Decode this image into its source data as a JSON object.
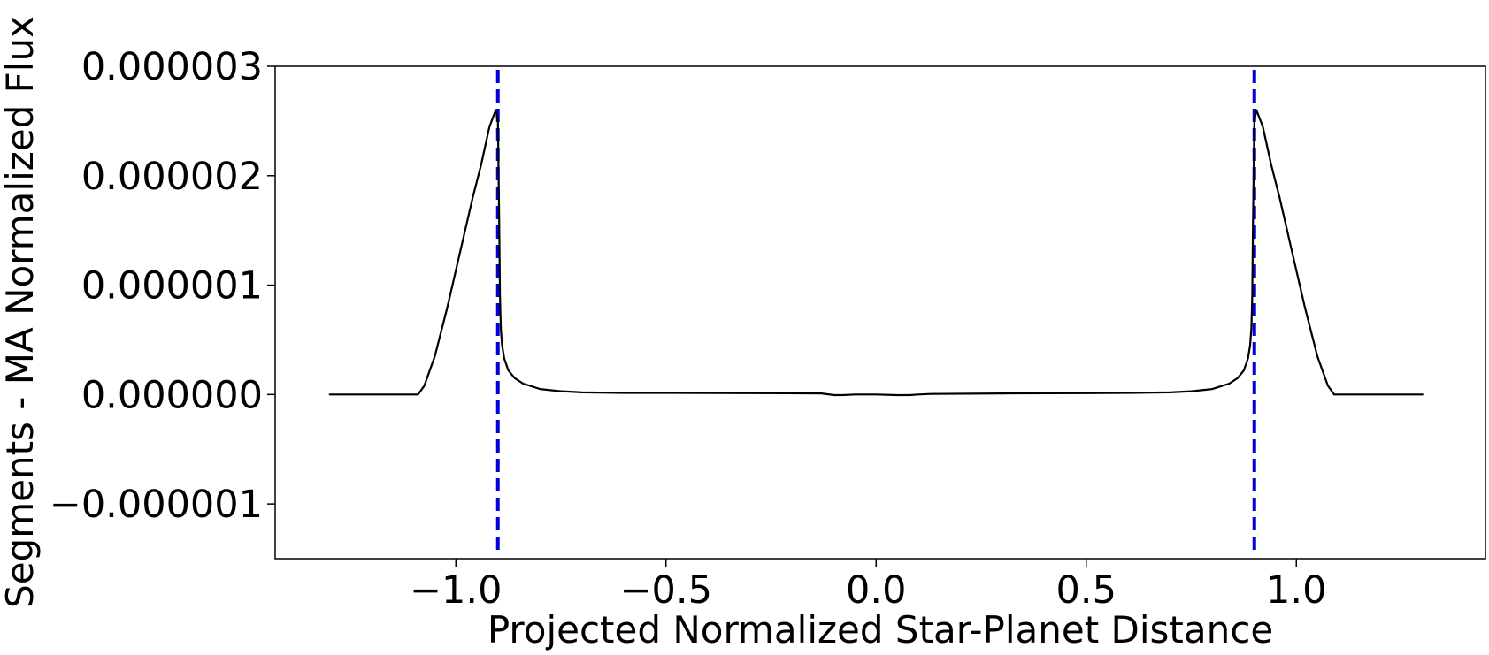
{
  "chart_data": {
    "type": "line",
    "title": "",
    "xlabel": "Projected Normalized Star-Planet Distance",
    "ylabel": "Segments - MA Normalized Flux",
    "xlim": [
      -1.43,
      1.45
    ],
    "ylim": [
      -1.5e-06,
      3e-06
    ],
    "x_ticks": [
      {
        "value": -1.0,
        "label": "−1.0"
      },
      {
        "value": -0.5,
        "label": "−0.5"
      },
      {
        "value": 0.0,
        "label": "0.0"
      },
      {
        "value": 0.5,
        "label": "0.5"
      },
      {
        "value": 1.0,
        "label": "1.0"
      }
    ],
    "y_ticks": [
      {
        "value": -1e-06,
        "label": "−0.000001"
      },
      {
        "value": 0.0,
        "label": "0.000000"
      },
      {
        "value": 1e-06,
        "label": "0.000001"
      },
      {
        "value": 2e-06,
        "label": "0.000002"
      },
      {
        "value": 3e-06,
        "label": "0.000003"
      }
    ],
    "grid": false,
    "series": [
      {
        "color": "#000000",
        "style": "solid",
        "x": [
          -1.3,
          -1.09,
          -1.075,
          -1.05,
          -1.02,
          -0.99,
          -0.96,
          -0.94,
          -0.92,
          -0.905,
          -0.9,
          -0.897,
          -0.895,
          -0.893,
          -0.89,
          -0.885,
          -0.875,
          -0.86,
          -0.84,
          -0.8,
          -0.75,
          -0.7,
          -0.6,
          -0.5,
          -0.3,
          -0.13,
          -0.1,
          -0.08,
          -0.05,
          0.0,
          0.05,
          0.08,
          0.1,
          0.13,
          0.3,
          0.5,
          0.6,
          0.7,
          0.75,
          0.8,
          0.84,
          0.86,
          0.875,
          0.885,
          0.89,
          0.893,
          0.895,
          0.897,
          0.9,
          0.905,
          0.92,
          0.94,
          0.96,
          0.99,
          1.02,
          1.05,
          1.075,
          1.09,
          1.3
        ],
        "y": [
          0.0,
          0.0,
          8e-08,
          3.5e-07,
          8e-07,
          1.3e-06,
          1.8e-06,
          2.1e-06,
          2.45e-06,
          2.6e-06,
          2.5e-06,
          1.6e-06,
          9e-07,
          6e-07,
          4.5e-07,
          3.3e-07,
          2.2e-07,
          1.5e-07,
          1e-07,
          5e-08,
          3e-08,
          2e-08,
          1.5e-08,
          1.5e-08,
          1.2e-08,
          1e-08,
          -5e-09,
          -5e-09,
          0.0,
          0.0,
          -5e-09,
          -5e-09,
          0.0,
          5e-09,
          1e-08,
          1.2e-08,
          1.5e-08,
          2e-08,
          3e-08,
          5e-08,
          1e-07,
          1.5e-07,
          2.2e-07,
          3.3e-07,
          4.5e-07,
          6e-07,
          9e-07,
          1.6e-06,
          2.5e-06,
          2.6e-06,
          2.45e-06,
          2.1e-06,
          1.8e-06,
          1.3e-06,
          8e-07,
          3.5e-07,
          8e-08,
          0.0,
          0.0
        ]
      }
    ],
    "vlines": [
      {
        "x": -0.9,
        "color": "#0000dd",
        "style": "dashed"
      },
      {
        "x": 0.9,
        "color": "#0000dd",
        "style": "dashed"
      }
    ]
  }
}
